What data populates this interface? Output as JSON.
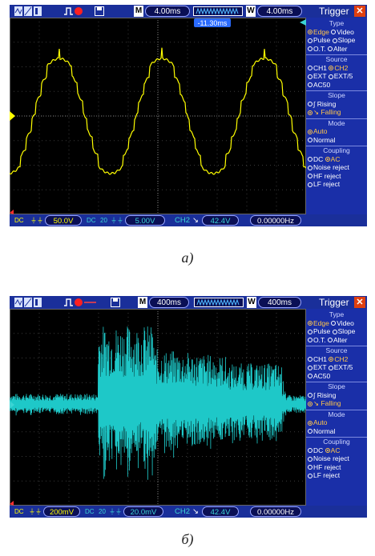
{
  "panels": [
    {
      "id": "A",
      "timebase_main": "4.00ms",
      "timebase_window": "4.00ms",
      "trigger_offset": "-11.30ms",
      "menu_title": "Trigger",
      "type_header": "Type",
      "type_opts": [
        "Edge",
        "Video",
        "Pulse",
        "Slope",
        "O.T.",
        "Alter"
      ],
      "source_header": "Source",
      "source_opts": [
        "CH1",
        "CH2",
        "EXT",
        "EXT/5",
        "AC50"
      ],
      "slope_header": "Slope",
      "slope_opts": [
        "Rising",
        "Falling"
      ],
      "mode_header": "Mode",
      "mode_opts": [
        "Auto",
        "Normal"
      ],
      "coupling_header": "Coupling",
      "coupling_opts": [
        "DC",
        "AC",
        "Noise reject",
        "HF reject",
        "LF reject"
      ],
      "ch1_scale": "50.0V",
      "ch2_scale": "5.00V",
      "trig_ch": "CH2",
      "trig_level": "42.4V",
      "freq": "0.00000Hz",
      "ch_num": "20",
      "waveform_color": "#ffff00"
    },
    {
      "id": "B",
      "timebase_main": "400ms",
      "timebase_window": "400ms",
      "menu_title": "Trigger",
      "type_header": "Type",
      "type_opts": [
        "Edge",
        "Video",
        "Pulse",
        "Slope",
        "O.T.",
        "Alter"
      ],
      "source_header": "Source",
      "source_opts": [
        "CH1",
        "CH2",
        "EXT",
        "EXT/5",
        "AC50"
      ],
      "slope_header": "Slope",
      "slope_opts": [
        "Rising",
        "Falling"
      ],
      "mode_header": "Mode",
      "mode_opts": [
        "Auto",
        "Normal"
      ],
      "coupling_header": "Coupling",
      "coupling_opts": [
        "DC",
        "AC",
        "Noise reject",
        "HF reject",
        "LF reject"
      ],
      "ch1_scale": "200mV",
      "ch2_scale": "20.0mV",
      "trig_ch": "CH2",
      "trig_level": "42.4V",
      "freq": "0.00000Hz",
      "ch_num": "20",
      "waveform_color": "#1ec8c8"
    }
  ],
  "captions": [
    "а)",
    "б)"
  ],
  "colors": {
    "accent_bar": "#1a2f9a",
    "highlight": "#ffc64a",
    "close": "#e04010"
  }
}
